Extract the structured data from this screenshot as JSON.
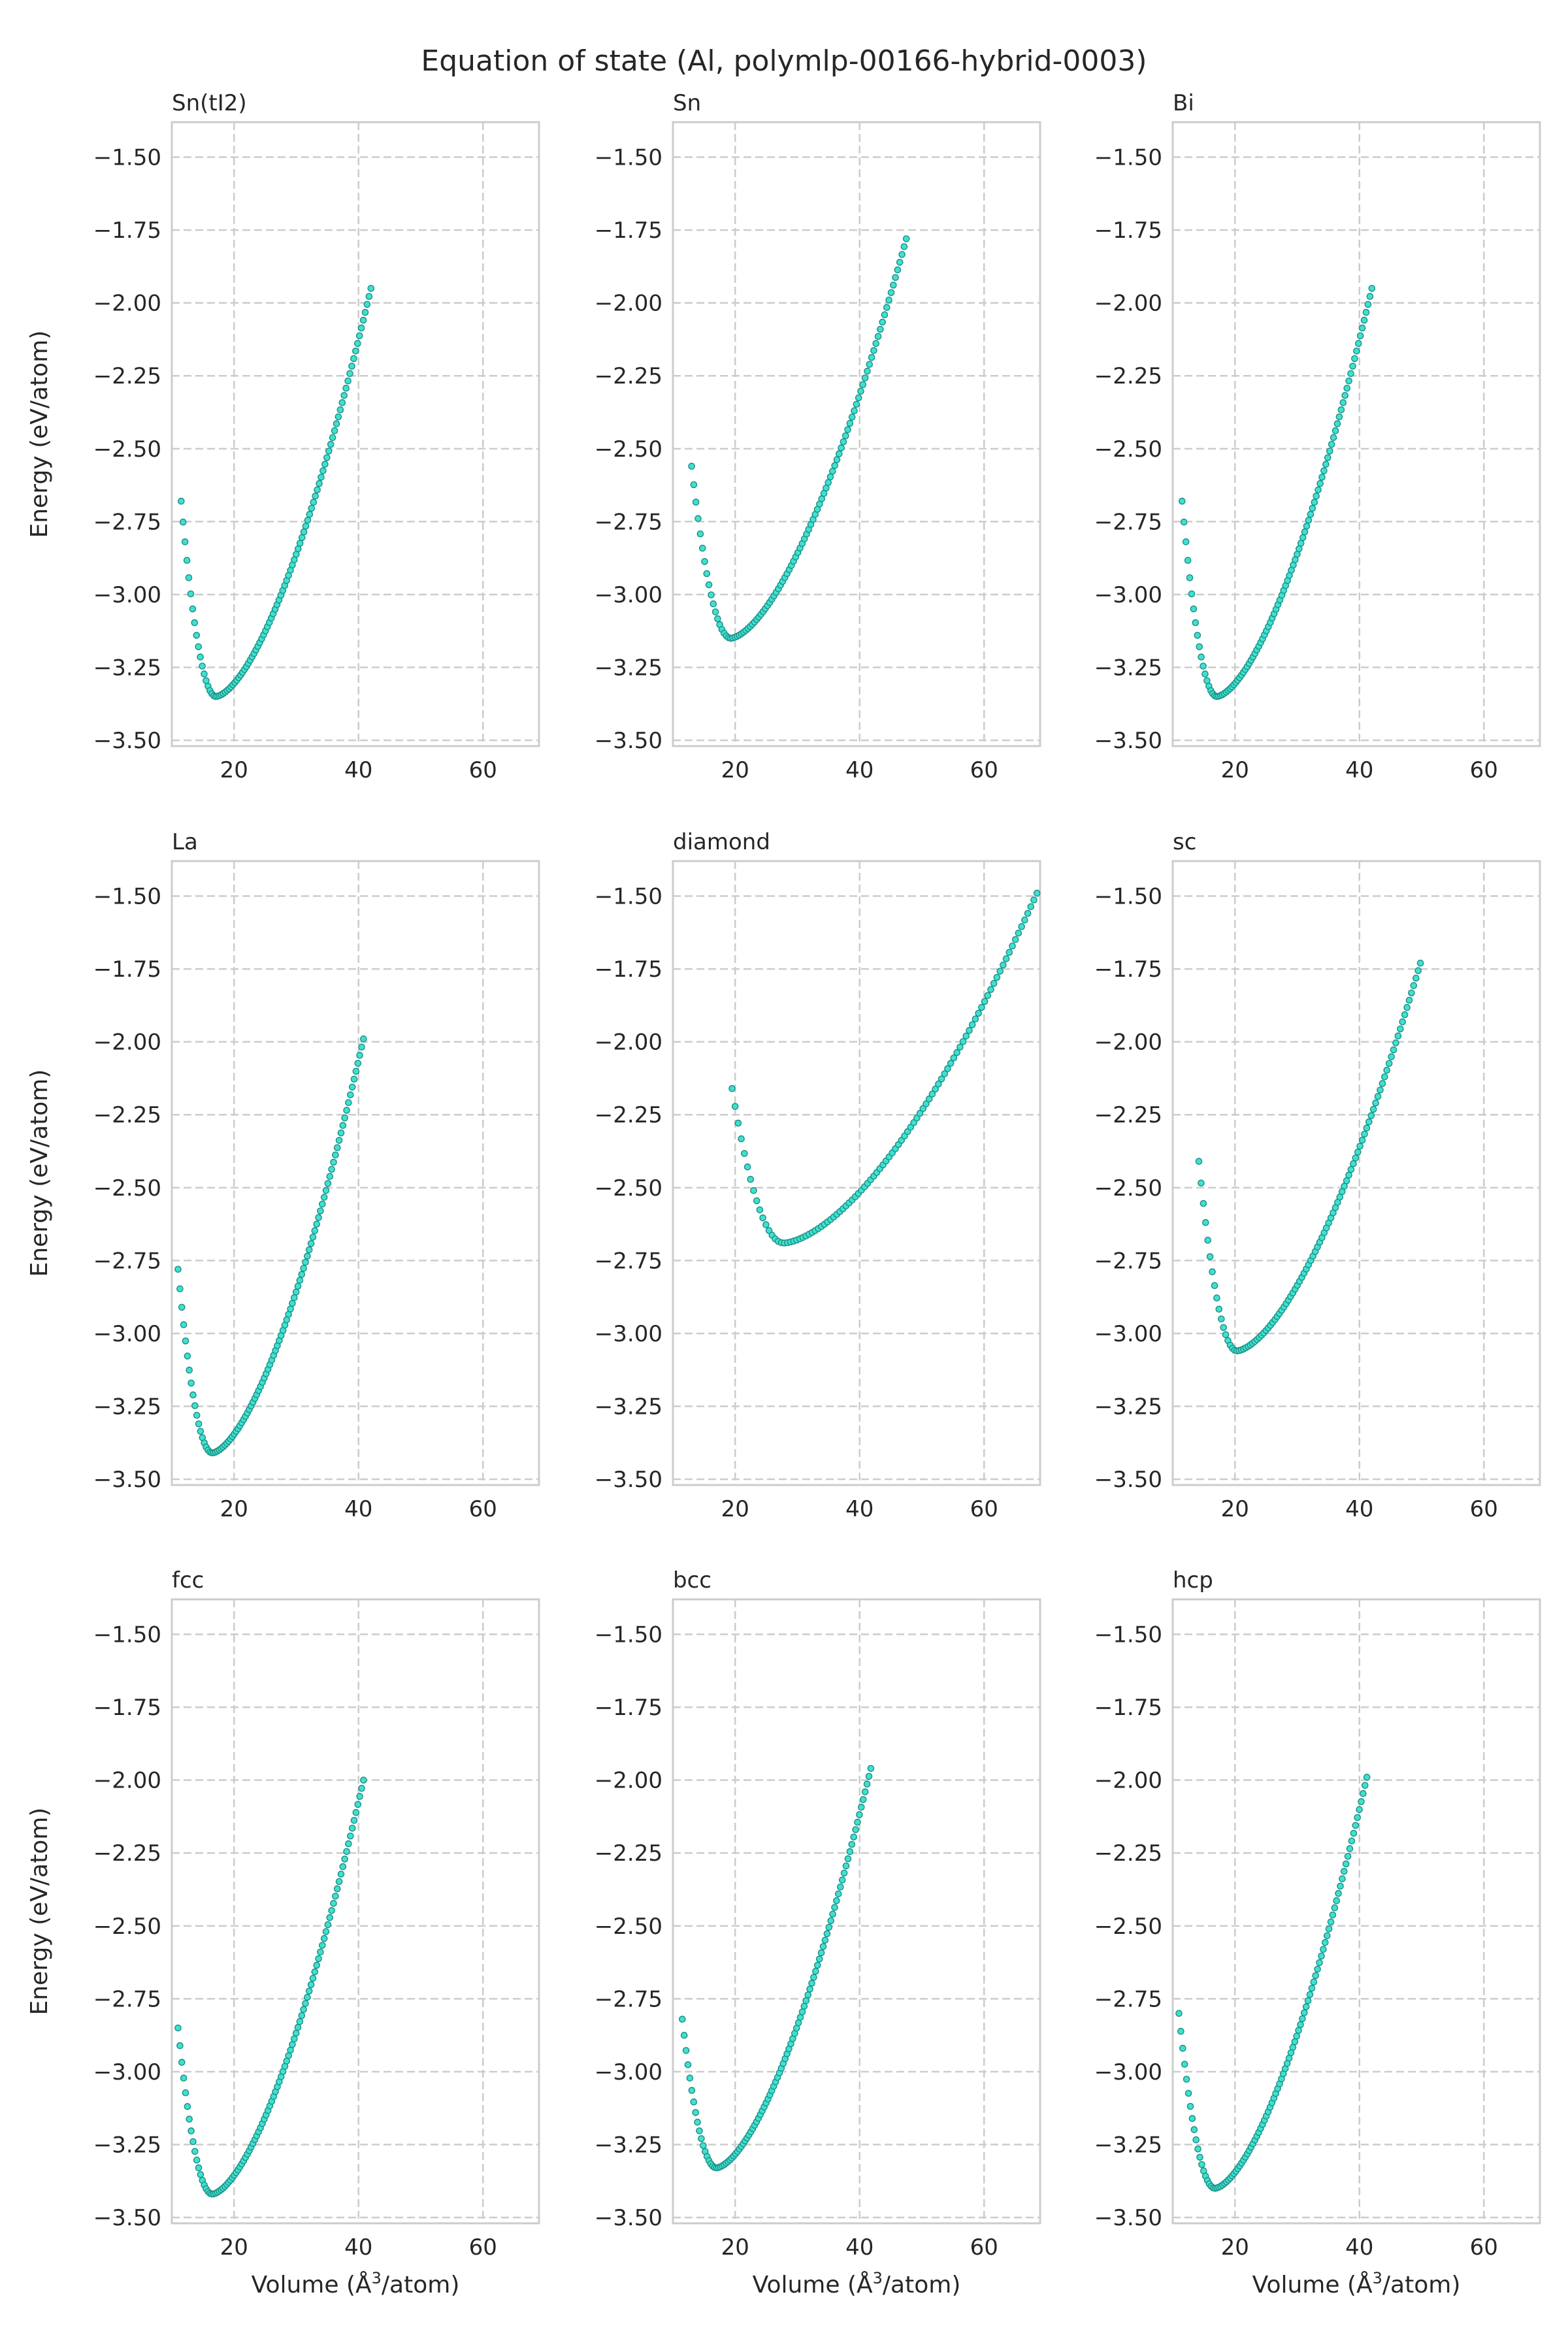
{
  "figure": {
    "title": "Equation of state (Al, polymlp-00166-hybrid-0003)",
    "xlabel_text": "Volume (",
    "xlabel_unit": "Å",
    "xlabel_sup": "3",
    "xlabel_tail": "/atom)",
    "ylabel": "Energy (eV/atom)",
    "colors": {
      "marker_fill": "#40E0D0",
      "marker_edge": "#1a8f84",
      "grid": "#cccccc",
      "axis": "#cccccc",
      "text": "#262626"
    }
  },
  "chart_data": [
    {
      "type": "scatter",
      "title": "Sn(tI2)",
      "xlim": [
        10,
        69
      ],
      "ylim": [
        -3.52,
        -1.38
      ],
      "xticks": [
        20,
        40,
        60
      ],
      "yticks": [
        -3.5,
        -3.25,
        -3.0,
        -2.75,
        -2.5,
        -2.25,
        -2.0,
        -1.75,
        -1.5
      ],
      "grid": true,
      "eos": {
        "v_start": 11.5,
        "v_min": 17.1,
        "e_min": -3.35,
        "v_end": 42.0,
        "e_end": -1.95,
        "e_start": -2.68,
        "n": 100
      }
    },
    {
      "type": "scatter",
      "title": "Sn",
      "xlim": [
        10,
        69
      ],
      "ylim": [
        -3.52,
        -1.38
      ],
      "xticks": [
        20,
        40,
        60
      ],
      "yticks": [
        -3.5,
        -3.25,
        -3.0,
        -2.75,
        -2.5,
        -2.25,
        -2.0,
        -1.75,
        -1.5
      ],
      "grid": true,
      "eos": {
        "v_start": 13.0,
        "v_min": 19.3,
        "e_min": -3.15,
        "v_end": 47.5,
        "e_end": -1.78,
        "e_start": -2.56,
        "n": 100
      }
    },
    {
      "type": "scatter",
      "title": "Bi",
      "xlim": [
        10,
        69
      ],
      "ylim": [
        -3.52,
        -1.38
      ],
      "xticks": [
        20,
        40,
        60
      ],
      "yticks": [
        -3.5,
        -3.25,
        -3.0,
        -2.75,
        -2.5,
        -2.25,
        -2.0,
        -1.75,
        -1.5
      ],
      "grid": true,
      "eos": {
        "v_start": 11.5,
        "v_min": 17.1,
        "e_min": -3.35,
        "v_end": 42.0,
        "e_end": -1.95,
        "e_start": -2.68,
        "n": 100
      }
    },
    {
      "type": "scatter",
      "title": "La",
      "xlim": [
        10,
        69
      ],
      "ylim": [
        -3.52,
        -1.38
      ],
      "xticks": [
        20,
        40,
        60
      ],
      "yticks": [
        -3.5,
        -3.25,
        -3.0,
        -2.75,
        -2.5,
        -2.25,
        -2.0,
        -1.75,
        -1.5
      ],
      "grid": true,
      "eos": {
        "v_start": 11.0,
        "v_min": 16.5,
        "e_min": -3.41,
        "v_end": 40.8,
        "e_end": -1.99,
        "e_start": -2.78,
        "n": 100
      }
    },
    {
      "type": "scatter",
      "title": "diamond",
      "xlim": [
        10,
        69
      ],
      "ylim": [
        -3.52,
        -1.38
      ],
      "xticks": [
        20,
        40,
        60
      ],
      "yticks": [
        -3.5,
        -3.25,
        -3.0,
        -2.75,
        -2.5,
        -2.25,
        -2.0,
        -1.75,
        -1.5
      ],
      "grid": true,
      "eos": {
        "v_start": 19.5,
        "v_min": 27.8,
        "e_min": -2.69,
        "v_end": 68.5,
        "e_end": -1.49,
        "e_start": -2.16,
        "n": 100
      }
    },
    {
      "type": "scatter",
      "title": "sc",
      "xlim": [
        10,
        69
      ],
      "ylim": [
        -3.52,
        -1.38
      ],
      "xticks": [
        20,
        40,
        60
      ],
      "yticks": [
        -3.5,
        -3.25,
        -3.0,
        -2.75,
        -2.5,
        -2.25,
        -2.0,
        -1.75,
        -1.5
      ],
      "grid": true,
      "eos": {
        "v_start": 14.2,
        "v_min": 20.3,
        "e_min": -3.06,
        "v_end": 49.8,
        "e_end": -1.73,
        "e_start": -2.41,
        "n": 100
      }
    },
    {
      "type": "scatter",
      "title": "fcc",
      "xlim": [
        10,
        69
      ],
      "ylim": [
        -3.52,
        -1.38
      ],
      "xticks": [
        20,
        40,
        60
      ],
      "yticks": [
        -3.5,
        -3.25,
        -3.0,
        -2.75,
        -2.5,
        -2.25,
        -2.0,
        -1.75,
        -1.5
      ],
      "grid": true,
      "eos": {
        "v_start": 11.0,
        "v_min": 16.5,
        "e_min": -3.42,
        "v_end": 40.8,
        "e_end": -2.0,
        "e_start": -2.85,
        "n": 100
      }
    },
    {
      "type": "scatter",
      "title": "bcc",
      "xlim": [
        10,
        69
      ],
      "ylim": [
        -3.52,
        -1.38
      ],
      "xticks": [
        20,
        40,
        60
      ],
      "yticks": [
        -3.5,
        -3.25,
        -3.0,
        -2.75,
        -2.5,
        -2.25,
        -2.0,
        -1.75,
        -1.5
      ],
      "grid": true,
      "eos": {
        "v_start": 11.5,
        "v_min": 17.0,
        "e_min": -3.33,
        "v_end": 41.8,
        "e_end": -1.96,
        "e_start": -2.82,
        "n": 100
      }
    },
    {
      "type": "scatter",
      "title": "hcp",
      "xlim": [
        10,
        69
      ],
      "ylim": [
        -3.52,
        -1.38
      ],
      "xticks": [
        20,
        40,
        60
      ],
      "yticks": [
        -3.5,
        -3.25,
        -3.0,
        -2.75,
        -2.5,
        -2.25,
        -2.0,
        -1.75,
        -1.5
      ],
      "grid": true,
      "eos": {
        "v_start": 11.0,
        "v_min": 16.8,
        "e_min": -3.4,
        "v_end": 41.2,
        "e_end": -1.99,
        "e_start": -2.8,
        "n": 100
      }
    }
  ]
}
